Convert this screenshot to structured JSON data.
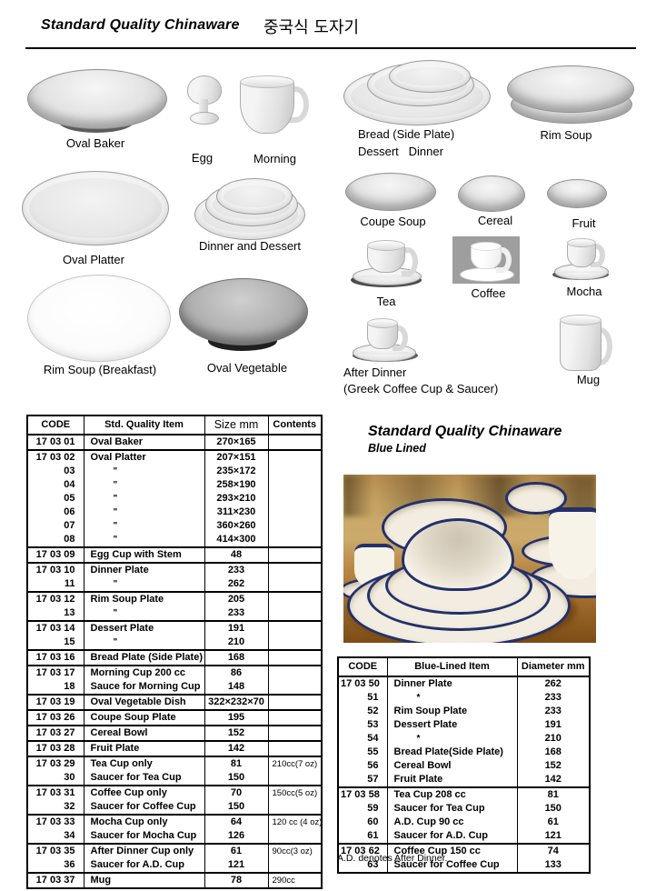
{
  "page": {
    "title_en": "Standard Quality Chinaware",
    "title_ko": "중국식 도자기"
  },
  "products": [
    {
      "label": "Oval Baker"
    },
    {
      "label": "Egg"
    },
    {
      "label": "Morning"
    },
    {
      "label": "Bread (Side Plate)",
      "label2": "Dessert   Dinner"
    },
    {
      "label": "Rim Soup"
    },
    {
      "label": "Oval Platter"
    },
    {
      "label": "Dinner and Dessert"
    },
    {
      "label": "Coupe Soup"
    },
    {
      "label": "Cereal"
    },
    {
      "label": "Fruit"
    },
    {
      "label": "Rim Soup (Breakfast)"
    },
    {
      "label": "Oval Vegetable"
    },
    {
      "label": "Tea"
    },
    {
      "label": "Coffee"
    },
    {
      "label": "Mocha"
    },
    {
      "label": "After Dinner",
      "label2": "(Greek Coffee Cup & Saucer)"
    },
    {
      "label": "Mug"
    }
  ],
  "left_table": {
    "headers": [
      "CODE",
      "Std. Quality Item",
      "Size mm",
      "Contents"
    ],
    "groups": [
      {
        "rows": [
          {
            "code": "17 03 01",
            "item": "Oval Baker",
            "size": "270×165",
            "contents": ""
          }
        ]
      },
      {
        "rows": [
          {
            "code": "17 03 02",
            "item": "Oval Platter",
            "size": "207×151",
            "contents": ""
          },
          {
            "code": "03",
            "item": "\"",
            "size": "235×172",
            "contents": ""
          },
          {
            "code": "04",
            "item": "\"",
            "size": "258×190",
            "contents": ""
          },
          {
            "code": "05",
            "item": "\"",
            "size": "293×210",
            "contents": ""
          },
          {
            "code": "06",
            "item": "\"",
            "size": "311×230",
            "contents": ""
          },
          {
            "code": "07",
            "item": "\"",
            "size": "360×260",
            "contents": ""
          },
          {
            "code": "08",
            "item": "\"",
            "size": "414×300",
            "contents": ""
          }
        ]
      },
      {
        "rows": [
          {
            "code": "17 03 09",
            "item": "Egg Cup with Stem",
            "size": "48",
            "contents": ""
          }
        ]
      },
      {
        "rows": [
          {
            "code": "17 03 10",
            "item": "Dinner Plate",
            "size": "233",
            "contents": ""
          },
          {
            "code": "11",
            "item": "\"",
            "size": "262",
            "contents": ""
          }
        ]
      },
      {
        "rows": [
          {
            "code": "17 03 12",
            "item": "Rim Soup Plate",
            "size": "205",
            "contents": ""
          },
          {
            "code": "13",
            "item": "\"",
            "size": "233",
            "contents": ""
          }
        ]
      },
      {
        "rows": [
          {
            "code": "17 03 14",
            "item": "Dessert Plate",
            "size": "191",
            "contents": ""
          },
          {
            "code": "15",
            "item": "\"",
            "size": "210",
            "contents": ""
          }
        ]
      },
      {
        "rows": [
          {
            "code": "17 03 16",
            "item": "Bread Plate (Side Plate)",
            "size": "168",
            "contents": ""
          }
        ]
      },
      {
        "rows": [
          {
            "code": "17 03 17",
            "item": "Morning Cup 200 cc",
            "size": "86",
            "contents": ""
          },
          {
            "code": "18",
            "item": "Sauce for Morning Cup",
            "size": "148",
            "contents": ""
          }
        ]
      },
      {
        "rows": [
          {
            "code": "17 03 19",
            "item": "Oval Vegetable Dish",
            "size": "322×232×70",
            "contents": ""
          }
        ]
      },
      {
        "rows": [
          {
            "code": "17 03 26",
            "item": "Coupe Soup Plate",
            "size": "195",
            "contents": ""
          }
        ]
      },
      {
        "rows": [
          {
            "code": "17 03 27",
            "item": "Cereal Bowl",
            "size": "152",
            "contents": ""
          }
        ]
      },
      {
        "rows": [
          {
            "code": "17 03 28",
            "item": "Fruit Plate",
            "size": "142",
            "contents": ""
          }
        ]
      },
      {
        "rows": [
          {
            "code": "17 03 29",
            "item": "Tea Cup only",
            "size": "81",
            "contents": "210cc(7 oz)"
          },
          {
            "code": "30",
            "item": "Saucer for Tea Cup",
            "size": "150",
            "contents": ""
          }
        ]
      },
      {
        "rows": [
          {
            "code": "17 03 31",
            "item": "Coffee Cup only",
            "size": "70",
            "contents": "150cc(5 oz)"
          },
          {
            "code": "32",
            "item": "Saucer for Coffee Cup",
            "size": "150",
            "contents": ""
          }
        ]
      },
      {
        "rows": [
          {
            "code": "17 03 33",
            "item": "Mocha Cup only",
            "size": "64",
            "contents": "120 cc (4 oz)"
          },
          {
            "code": "34",
            "item": "Saucer for Mocha Cup",
            "size": "126",
            "contents": ""
          }
        ]
      },
      {
        "rows": [
          {
            "code": "17 03 35",
            "item": "After Dinner Cup only",
            "size": "61",
            "contents": "90cc(3 oz)"
          },
          {
            "code": "36",
            "item": "Saucer for A.D. Cup",
            "size": "121",
            "contents": ""
          }
        ]
      },
      {
        "rows": [
          {
            "code": "17 03 37",
            "item": "Mug",
            "size": "78",
            "contents": "290cc"
          }
        ]
      }
    ]
  },
  "right_section": {
    "heading": "Standard Quality Chinaware",
    "subheading": "Blue Lined",
    "table": {
      "headers": [
        "CODE",
        "Blue-Lined Item",
        "Diameter mm"
      ],
      "groups": [
        {
          "rows": [
            {
              "code": "17 03 50",
              "item": "Dinner Plate",
              "dia": "262"
            },
            {
              "code": "51",
              "item": "*",
              "dia": "233"
            },
            {
              "code": "52",
              "item": "Rim Soup Plate",
              "dia": "233"
            },
            {
              "code": "53",
              "item": "Dessert Plate",
              "dia": "191"
            },
            {
              "code": "54",
              "item": "*",
              "dia": "210"
            },
            {
              "code": "55",
              "item": "Bread Plate(Side Plate)",
              "dia": "168"
            },
            {
              "code": "56",
              "item": "Cereal Bowl",
              "dia": "152"
            },
            {
              "code": "57",
              "item": "Fruit Plate",
              "dia": "142"
            }
          ]
        },
        {
          "rows": [
            {
              "code": "17 03 58",
              "item": "Tea Cup 208 cc",
              "dia": "81"
            },
            {
              "code": "59",
              "item": "Saucer for Tea Cup",
              "dia": "150"
            },
            {
              "code": "60",
              "item": "A.D. Cup 90 cc",
              "dia": "61"
            },
            {
              "code": "61",
              "item": "Saucer for A.D. Cup",
              "dia": "121"
            }
          ]
        },
        {
          "rows": [
            {
              "code": "17 03 62",
              "item": "Coffee Cup 150 cc",
              "dia": "74"
            },
            {
              "code": "63",
              "item": "Saucer for Coffee Cup",
              "dia": "133"
            }
          ]
        }
      ]
    },
    "footnote": "A.D. denotes After Dinner."
  },
  "colors": {
    "navy_rim": "#23306b",
    "wood": "#c9a766",
    "ink": "#000000"
  }
}
